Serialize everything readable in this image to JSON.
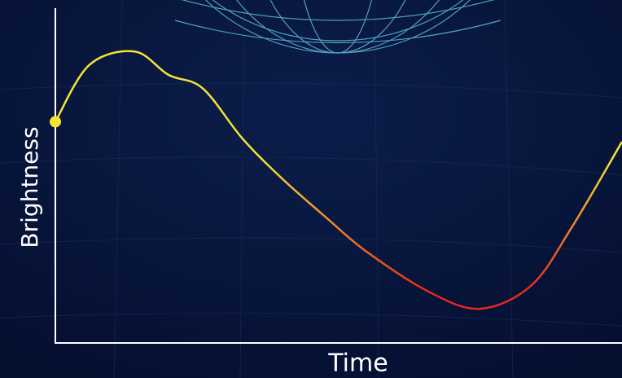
{
  "chart_data": {
    "type": "line",
    "xlabel": "Time",
    "ylabel": "Brightness",
    "x": [
      0,
      6,
      14,
      20,
      26,
      33,
      40,
      48,
      55,
      66,
      75,
      84,
      91,
      100
    ],
    "values": [
      66,
      83,
      87,
      80,
      76,
      61,
      49,
      37,
      27,
      15,
      10,
      17,
      34,
      60
    ],
    "xlim": [
      0,
      100
    ],
    "ylim": [
      0,
      100
    ],
    "color": [
      "#f3e533",
      "#e8261e"
    ]
  }
}
